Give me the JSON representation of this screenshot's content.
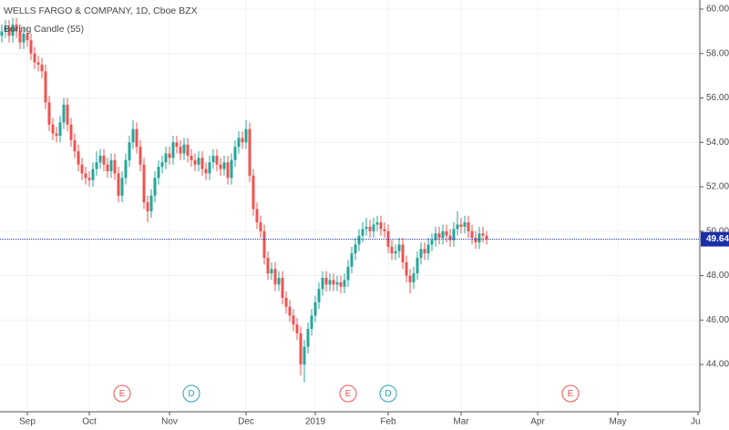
{
  "chart_data": {
    "type": "candlestick",
    "title": "WELLS FARGO & COMPANY, 1D, Cboe BZX",
    "subtitle": "Boring Candle (55)",
    "up_color": "#26a69a",
    "down_color": "#ef5350",
    "grid": true,
    "xlim": [
      -0.5,
      191.5
    ],
    "xticks": [
      {
        "value": 7,
        "label": "Sep"
      },
      {
        "value": 24,
        "label": "Oct"
      },
      {
        "value": 46,
        "label": "Nov"
      },
      {
        "value": 67,
        "label": "Dec"
      },
      {
        "value": 86,
        "label": "2019"
      },
      {
        "value": 106,
        "label": "Feb"
      },
      {
        "value": 126,
        "label": "Mar"
      },
      {
        "value": 147,
        "label": "Apr"
      },
      {
        "value": 169,
        "label": "May"
      },
      {
        "value": 191,
        "label": "Jun"
      }
    ],
    "ylim": [
      41.87,
      60.41
    ],
    "yticks": [
      {
        "value": 44,
        "label": "44.00"
      },
      {
        "value": 46,
        "label": "46.00"
      },
      {
        "value": 48,
        "label": "48.00"
      },
      {
        "value": 50,
        "label": "50.00"
      },
      {
        "value": 52,
        "label": "52.00"
      },
      {
        "value": 54,
        "label": "54.00"
      },
      {
        "value": 56,
        "label": "56.00"
      },
      {
        "value": 58,
        "label": "58.00"
      },
      {
        "value": 60,
        "label": "60.00"
      }
    ],
    "last_price": 49.64,
    "last_price_color": "#1a2fa8",
    "events": [
      {
        "label": "E",
        "x": 33,
        "color": "#ef5350"
      },
      {
        "label": "D",
        "x": 52,
        "color": "#26a0b0"
      },
      {
        "label": "E",
        "x": 95,
        "color": "#ef5350"
      },
      {
        "label": "D",
        "x": 106,
        "color": "#26a0b0"
      },
      {
        "label": "E",
        "x": 156,
        "color": "#ef5350"
      }
    ],
    "open": [
      58.8,
      59.0,
      59.2,
      58.8,
      59.3,
      59.0,
      58.5,
      58.9,
      58.6,
      58.0,
      57.6,
      57.5,
      57.2,
      55.8,
      54.8,
      54.4,
      54.3,
      54.9,
      55.7,
      54.8,
      54.1,
      53.6,
      53.0,
      52.6,
      52.4,
      52.3,
      52.8,
      53.1,
      53.4,
      53.0,
      52.7,
      53.2,
      52.6,
      51.6,
      52.4,
      53.2,
      54.0,
      54.6,
      53.8,
      53.0,
      51.3,
      50.9,
      51.6,
      52.4,
      52.9,
      53.1,
      53.5,
      53.3,
      54.0,
      53.8,
      53.5,
      53.9,
      53.4,
      53.2,
      53.0,
      53.3,
      52.8,
      52.6,
      53.1,
      53.4,
      53.0,
      52.8,
      53.1,
      52.4,
      53.2,
      53.8,
      54.2,
      54.0,
      54.6,
      52.5,
      51.0,
      50.4,
      50.0,
      48.8,
      48.1,
      48.3,
      47.6,
      47.9,
      47.0,
      46.6,
      46.2,
      45.8,
      45.4,
      44.0,
      44.8,
      45.6,
      46.2,
      46.8,
      47.4,
      47.9,
      47.6,
      47.8,
      47.6,
      47.7,
      47.5,
      47.8,
      48.4,
      49.0,
      49.4,
      49.8,
      50.1,
      50.2,
      50.0,
      50.3,
      50.4,
      50.1,
      50.0,
      49.3,
      49.0,
      49.1,
      49.4,
      48.6,
      48.0,
      47.7,
      48.1,
      48.8,
      49.2,
      49.0,
      49.4,
      49.6,
      49.9,
      49.7,
      50.0,
      49.8,
      49.6,
      50.1,
      50.3,
      50.2,
      50.4,
      50.0,
      49.7,
      49.5,
      49.9,
      49.8
    ],
    "high": [
      59.3,
      59.5,
      59.5,
      59.6,
      59.6,
      59.3,
      59.2,
      59.2,
      58.9,
      58.3,
      57.9,
      57.8,
      57.5,
      56.1,
      55.1,
      54.7,
      55.2,
      56.0,
      56.0,
      55.1,
      54.4,
      53.9,
      53.3,
      52.9,
      52.7,
      53.1,
      53.6,
      53.7,
      53.7,
      53.3,
      53.5,
      53.5,
      52.9,
      52.7,
      53.5,
      54.3,
      55.0,
      54.9,
      54.1,
      53.3,
      51.6,
      51.9,
      52.7,
      53.2,
      53.4,
      53.8,
      53.8,
      54.3,
      54.3,
      54.1,
      54.2,
      54.2,
      53.7,
      53.5,
      53.6,
      53.6,
      53.1,
      53.4,
      53.7,
      53.7,
      53.3,
      53.4,
      53.4,
      53.5,
      54.1,
      54.5,
      54.5,
      55.0,
      54.9,
      52.8,
      51.3,
      50.7,
      50.3,
      49.1,
      48.6,
      48.6,
      48.2,
      48.2,
      47.3,
      46.9,
      46.5,
      46.1,
      45.7,
      45.1,
      45.9,
      46.5,
      47.1,
      47.7,
      48.2,
      48.2,
      48.1,
      48.1,
      48.0,
      48.0,
      48.1,
      48.7,
      49.3,
      49.7,
      50.1,
      50.4,
      50.6,
      50.5,
      50.6,
      50.7,
      50.7,
      50.4,
      50.3,
      49.6,
      49.4,
      49.7,
      49.7,
      48.9,
      48.3,
      48.4,
      49.1,
      49.5,
      49.5,
      49.7,
      49.9,
      50.2,
      50.2,
      50.3,
      50.3,
      50.1,
      50.4,
      50.9,
      50.6,
      50.7,
      50.7,
      50.3,
      50.0,
      50.2,
      50.2,
      50.0
    ],
    "low": [
      58.5,
      58.7,
      58.5,
      58.5,
      58.7,
      58.2,
      58.2,
      58.3,
      57.7,
      57.3,
      57.2,
      56.9,
      55.5,
      54.5,
      54.1,
      54.0,
      54.0,
      54.6,
      54.5,
      53.8,
      53.3,
      52.7,
      52.3,
      52.1,
      52.0,
      52.0,
      52.5,
      52.8,
      52.7,
      52.4,
      52.4,
      52.3,
      51.3,
      51.3,
      52.1,
      52.9,
      53.7,
      53.5,
      52.7,
      51.0,
      50.4,
      50.6,
      51.3,
      52.1,
      52.6,
      52.8,
      53.0,
      53.0,
      53.5,
      53.2,
      53.2,
      53.1,
      52.9,
      52.7,
      52.7,
      52.5,
      52.3,
      52.3,
      52.8,
      52.7,
      52.5,
      52.5,
      52.1,
      52.1,
      52.9,
      53.5,
      53.7,
      53.7,
      52.2,
      50.7,
      50.1,
      49.7,
      48.5,
      47.8,
      47.8,
      47.3,
      47.3,
      46.7,
      46.3,
      45.9,
      45.5,
      45.1,
      43.5,
      43.2,
      44.5,
      45.3,
      45.9,
      46.5,
      47.1,
      47.3,
      47.3,
      47.3,
      47.3,
      47.2,
      47.2,
      47.5,
      48.1,
      48.7,
      49.1,
      49.5,
      49.8,
      49.7,
      49.7,
      50.0,
      49.8,
      49.7,
      49.0,
      48.7,
      48.7,
      48.8,
      48.3,
      47.7,
      47.2,
      47.4,
      47.8,
      48.5,
      48.7,
      48.7,
      49.1,
      49.3,
      49.4,
      49.4,
      49.5,
      49.3,
      49.3,
      49.8,
      49.9,
      49.9,
      49.7,
      49.4,
      49.2,
      49.2,
      49.5,
      49.4
    ],
    "close": [
      59.0,
      59.2,
      58.8,
      59.3,
      59.0,
      58.5,
      58.9,
      58.6,
      58.0,
      57.6,
      57.5,
      57.2,
      55.8,
      54.8,
      54.4,
      54.3,
      54.9,
      55.7,
      54.8,
      54.1,
      53.6,
      53.0,
      52.6,
      52.4,
      52.3,
      52.8,
      53.1,
      53.4,
      53.0,
      52.7,
      53.2,
      52.6,
      51.6,
      52.4,
      53.2,
      54.0,
      54.6,
      53.8,
      53.0,
      51.3,
      50.9,
      51.6,
      52.4,
      52.9,
      53.1,
      53.5,
      53.3,
      54.0,
      53.8,
      53.5,
      53.9,
      53.4,
      53.2,
      53.0,
      53.3,
      52.8,
      52.6,
      53.1,
      53.4,
      53.0,
      52.8,
      53.1,
      52.4,
      53.2,
      53.8,
      54.2,
      54.0,
      54.6,
      52.5,
      51.0,
      50.4,
      50.0,
      48.8,
      48.1,
      48.3,
      47.6,
      47.9,
      47.0,
      46.6,
      46.2,
      45.8,
      45.4,
      44.0,
      44.8,
      45.6,
      46.2,
      46.8,
      47.4,
      47.9,
      47.6,
      47.8,
      47.6,
      47.7,
      47.5,
      47.8,
      48.4,
      49.0,
      49.4,
      49.8,
      50.1,
      50.2,
      50.0,
      50.3,
      50.4,
      50.1,
      50.0,
      49.3,
      49.0,
      49.1,
      49.4,
      48.6,
      48.0,
      47.7,
      48.1,
      48.8,
      49.2,
      49.0,
      49.4,
      49.6,
      49.9,
      49.7,
      50.0,
      49.8,
      49.6,
      50.1,
      50.3,
      50.2,
      50.4,
      50.0,
      49.7,
      49.5,
      49.9,
      49.8,
      49.64
    ]
  }
}
